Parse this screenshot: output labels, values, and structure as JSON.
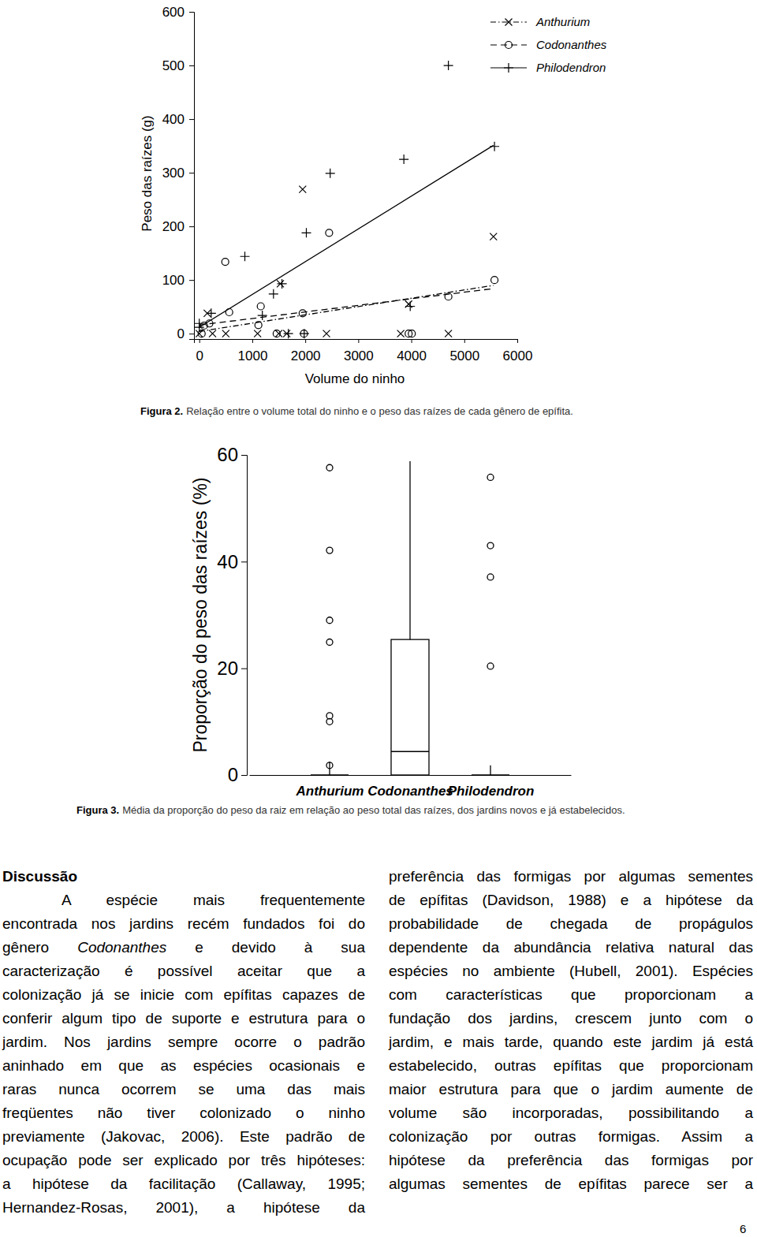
{
  "chart_data": [
    {
      "type": "scatter",
      "x_label": "Volume do ninho",
      "y_label": "Peso das raízes (g)",
      "xlim": [
        -100,
        6000
      ],
      "ylim": [
        -10,
        600
      ],
      "xticks": [
        0,
        1000,
        2000,
        3000,
        4000,
        5000,
        6000
      ],
      "yticks": [
        0,
        100,
        200,
        300,
        400,
        500,
        600
      ],
      "legend": "top-right",
      "series": [
        {
          "name": "Anthurium",
          "color": "#000000",
          "marker": "x",
          "line_style": "dashdot",
          "x": [
            0,
            150,
            250,
            500,
            1100,
            1500,
            1650,
            2400,
            3800,
            4700,
            1950,
            5550,
            3950,
            1530
          ],
          "values": [
            0,
            38,
            0,
            0,
            0,
            0,
            0,
            0,
            0,
            0,
            269,
            181,
            55,
            93
          ],
          "trend_x": [
            0,
            5550
          ],
          "trend_y": [
            4,
            90
          ]
        },
        {
          "name": "Codonanthes",
          "color": "#000000",
          "marker": "circle",
          "line_style": "dashed",
          "x": [
            45,
            90,
            190,
            490,
            565,
            1115,
            1160,
            1460,
            1950,
            1975,
            2450,
            3950,
            4010,
            4700,
            5570
          ],
          "values": [
            0,
            15,
            19,
            134,
            40,
            16,
            51,
            0,
            38,
            0,
            188,
            0,
            0,
            69,
            100
          ],
          "trend_x": [
            0,
            5550
          ],
          "trend_y": [
            16,
            84
          ]
        },
        {
          "name": "Philodendron",
          "color": "#000000",
          "marker": "plus",
          "line_style": "solid",
          "x": [
            0,
            0,
            225,
            860,
            1190,
            1400,
            1560,
            1680,
            1980,
            2020,
            2470,
            3860,
            3980,
            4700,
            5570
          ],
          "values": [
            12,
            19,
            38,
            144,
            34,
            74,
            93,
            0,
            0,
            188,
            299,
            325,
            51,
            500,
            349
          ],
          "trend_x": [
            0,
            5550
          ],
          "trend_y": [
            12,
            351
          ]
        }
      ]
    },
    {
      "type": "box",
      "y_label": "Proporção do peso das raízes (%)",
      "categories": [
        "Anthurium",
        "Codonanthes",
        "Philodendron"
      ],
      "ylim": [
        0,
        60
      ],
      "yticks": [
        0,
        20,
        40,
        60
      ],
      "color": "#000000",
      "min": [
        0,
        0,
        0
      ],
      "q1": [
        0,
        0,
        0
      ],
      "median": [
        0,
        4.4,
        0
      ],
      "q3": [
        0,
        25.4,
        0
      ],
      "max": [
        2.5,
        58.8,
        1.8
      ],
      "outliers": [
        [
          57.6,
          42.1,
          29,
          24.9,
          11.1,
          10,
          1.8
        ],
        [],
        [
          55.8,
          43,
          37.1,
          20.4
        ]
      ]
    }
  ],
  "captions": [
    {
      "label": "Figura 2.",
      "text": "Relação entre o volume total do ninho e o peso das raízes de cada gênero de epífita."
    },
    {
      "label": "Figura 3.",
      "text": "Média da proporção do peso da raiz em relação ao peso total das raízes, dos jardins novos e já estabelecidos."
    }
  ],
  "discussion": {
    "title": "Discussão",
    "left": [
      "A espécie mais frequentemente",
      "encontrada nos jardins recém fundados foi do",
      [
        {
          "text": "gênero "
        },
        {
          "text": "Codonanthes",
          "style": "italic"
        },
        {
          "text": " e devido à sua"
        }
      ],
      "caracterização é possível aceitar que a",
      "colonização já se inicie com epífitas capazes de",
      "conferir algum tipo de suporte e estrutura para o",
      "jardim. Nos jardins sempre ocorre o padrão",
      "aninhado em que as espécies ocasionais e",
      "raras nunca ocorrem se uma das mais",
      "freqüentes não tiver colonizado o ninho",
      "previamente (Jakovac, 2006). Este padrão de",
      "ocupação pode ser explicado por três hipóteses:",
      "a hipótese da facilitação (Callaway, 1995;",
      "Hernandez-Rosas, 2001), a hipótese da"
    ],
    "right": [
      "preferência das formigas por algumas sementes",
      "de epífitas (Davidson, 1988) e a hipótese da",
      "probabilidade de chegada de propágulos",
      "dependente da abundância relativa natural das",
      "espécies no ambiente (Hubell, 2001). Espécies",
      "com características que proporcionam a",
      "fundação dos jardins, crescem junto com o",
      "jardim, e mais tarde, quando este jardim já está",
      "estabelecido, outras epífitas que proporcionam",
      "maior estrutura para que o jardim aumente de",
      "volume são incorporadas, possibilitando a",
      "colonização por outras formigas. Assim a",
      "hipótese da preferência das formigas por",
      "algumas sementes de epífitas parece ser a"
    ]
  },
  "page_number": 6
}
